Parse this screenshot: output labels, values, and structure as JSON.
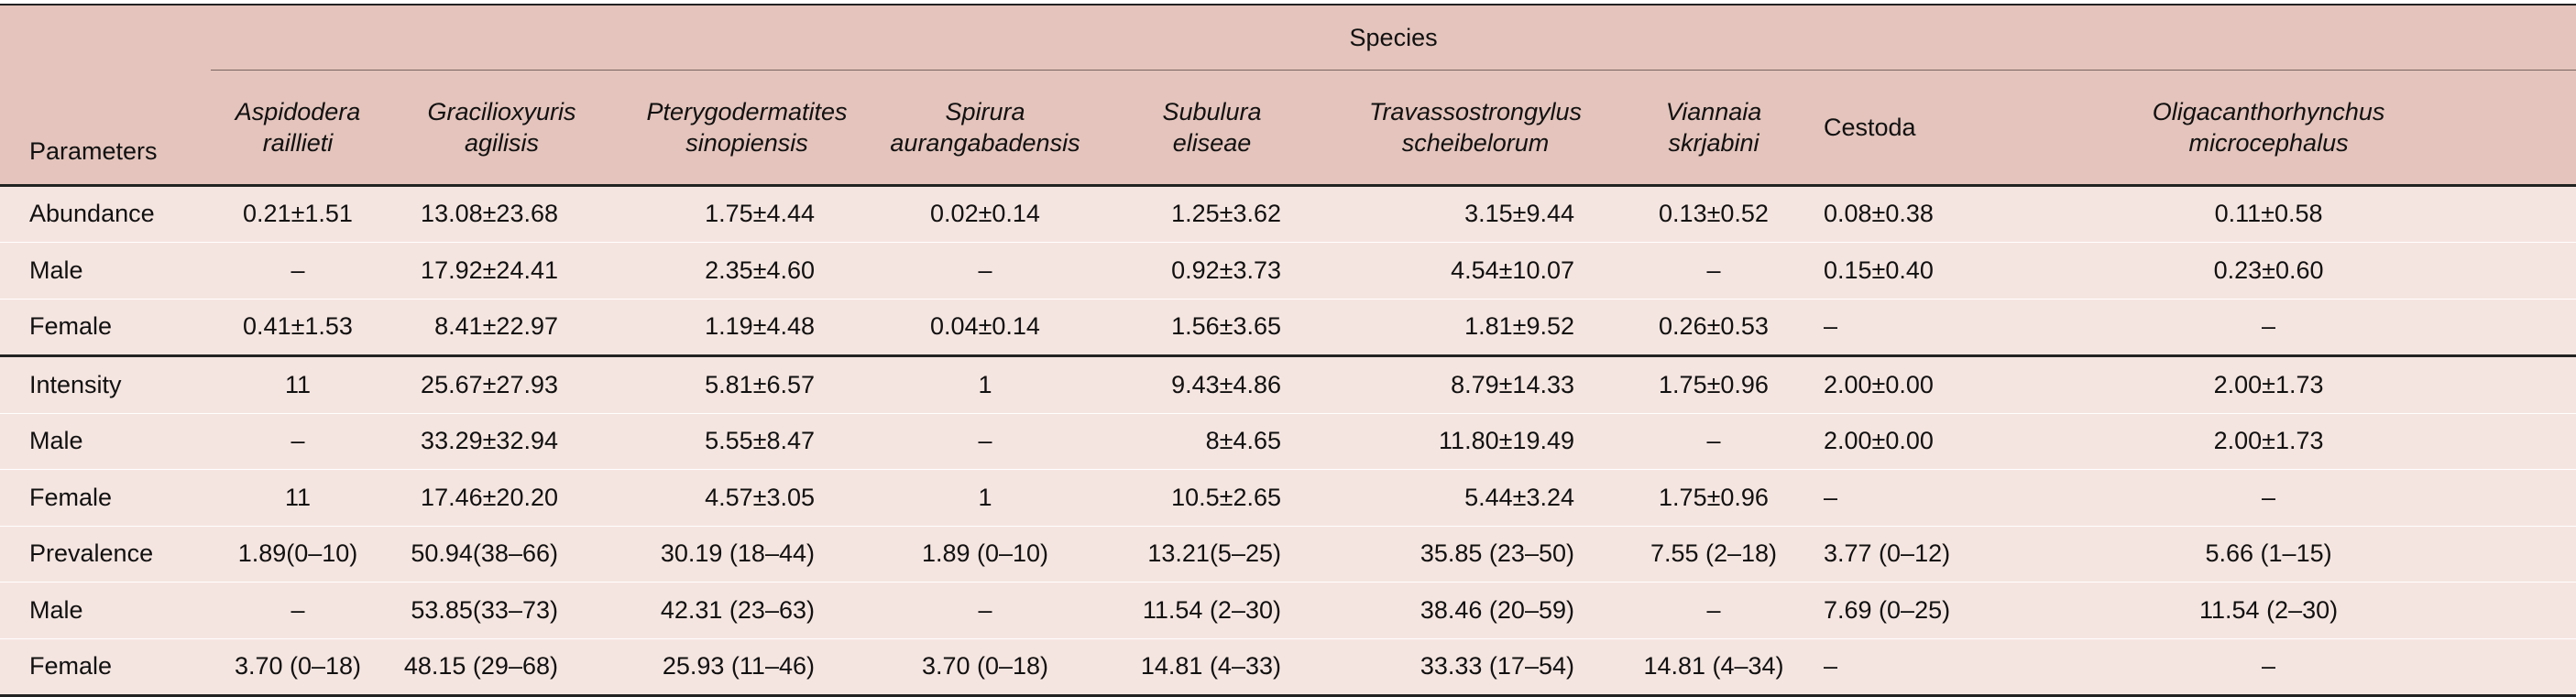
{
  "header": {
    "group_label": "Species",
    "params_label": "Parameters",
    "columns": [
      {
        "name": "Aspidodera raillieti",
        "line1": "Aspidodera",
        "line2": "raillieti",
        "italic": true
      },
      {
        "name": "Gracilioxyuris agilisis",
        "line1": "Gracilioxyuris",
        "line2": "agilisis",
        "italic": true
      },
      {
        "name": "Pterygodermatites sinopiensis",
        "line1": "Pterygodermatites",
        "line2": "sinopiensis",
        "italic": true
      },
      {
        "name": "Spirura aurangabadensis",
        "line1": "Spirura",
        "line2": "aurangabadensis",
        "italic": true
      },
      {
        "name": "Subulura eliseae",
        "line1": "Subulura",
        "line2": "eliseae",
        "italic": true
      },
      {
        "name": "Travassostrongylus scheibelorum",
        "line1": "Travassostrongylus",
        "line2": "scheibelorum",
        "italic": true
      },
      {
        "name": "Viannaia skrjabini",
        "line1": "Viannaia",
        "line2": "skrjabini",
        "italic": true
      },
      {
        "name": "Cestoda",
        "line1": "Cestoda",
        "line2": "",
        "italic": false
      },
      {
        "name": "Oligacanthorhynchus microcephalus",
        "line1": "Oligacanthorhynchus",
        "line2": "microcephalus",
        "italic": true
      }
    ]
  },
  "rows": [
    {
      "param": "Abundance",
      "values": [
        "0.21±1.51",
        "13.08±23.68",
        "1.75±4.44",
        "0.02±0.14",
        "1.25±3.62",
        "3.15±9.44",
        "0.13±0.52",
        "0.08±0.38",
        "0.11±0.58"
      ]
    },
    {
      "param": "Male",
      "values": [
        "–",
        "17.92±24.41",
        "2.35±4.60",
        "–",
        "0.92±3.73",
        "4.54±10.07",
        "–",
        "0.15±0.40",
        "0.23±0.60"
      ]
    },
    {
      "param": "Female",
      "values": [
        "0.41±1.53",
        "8.41±22.97",
        "1.19±4.48",
        "0.04±0.14",
        "1.56±3.65",
        "1.81±9.52",
        "0.26±0.53",
        "–",
        "–"
      ]
    },
    {
      "param": "Intensity",
      "values": [
        "11",
        "25.67±27.93",
        "5.81±6.57",
        "1",
        "9.43±4.86",
        "8.79±14.33",
        "1.75±0.96",
        "2.00±0.00",
        "2.00±1.73"
      ]
    },
    {
      "param": "Male",
      "values": [
        "–",
        "33.29±32.94",
        "5.55±8.47",
        "–",
        "8±4.65",
        "11.80±19.49",
        "–",
        "2.00±0.00",
        "2.00±1.73"
      ]
    },
    {
      "param": "Female",
      "values": [
        "11",
        "17.46±20.20",
        "4.57±3.05",
        "1",
        "10.5±2.65",
        "5.44±3.24",
        "1.75±0.96",
        "–",
        "–"
      ]
    },
    {
      "param": "Prevalence",
      "values": [
        "1.89(0–10)",
        "50.94(38–66)",
        "30.19 (18–44)",
        "1.89 (0–10)",
        "13.21(5–25)",
        "35.85 (23–50)",
        "7.55 (2–18)",
        "3.77 (0–12)",
        "5.66 (1–15)"
      ]
    },
    {
      "param": "Male",
      "values": [
        "–",
        "53.85(33–73)",
        "42.31 (23–63)",
        "–",
        "11.54 (2–30)",
        "38.46 (20–59)",
        "–",
        "7.69 (0–25)",
        "11.54 (2–30)"
      ]
    },
    {
      "param": "Female",
      "values": [
        "3.70 (0–18)",
        "48.15 (29–68)",
        "25.93 (11–46)",
        "3.70 (0–18)",
        "14.81 (4–33)",
        "33.33 (17–54)",
        "14.81 (4–34)",
        "–",
        "–"
      ]
    }
  ],
  "colors": {
    "header_bg": "#e4c4bc",
    "body_bg": "#f5e5e0",
    "rule": "#222222"
  }
}
